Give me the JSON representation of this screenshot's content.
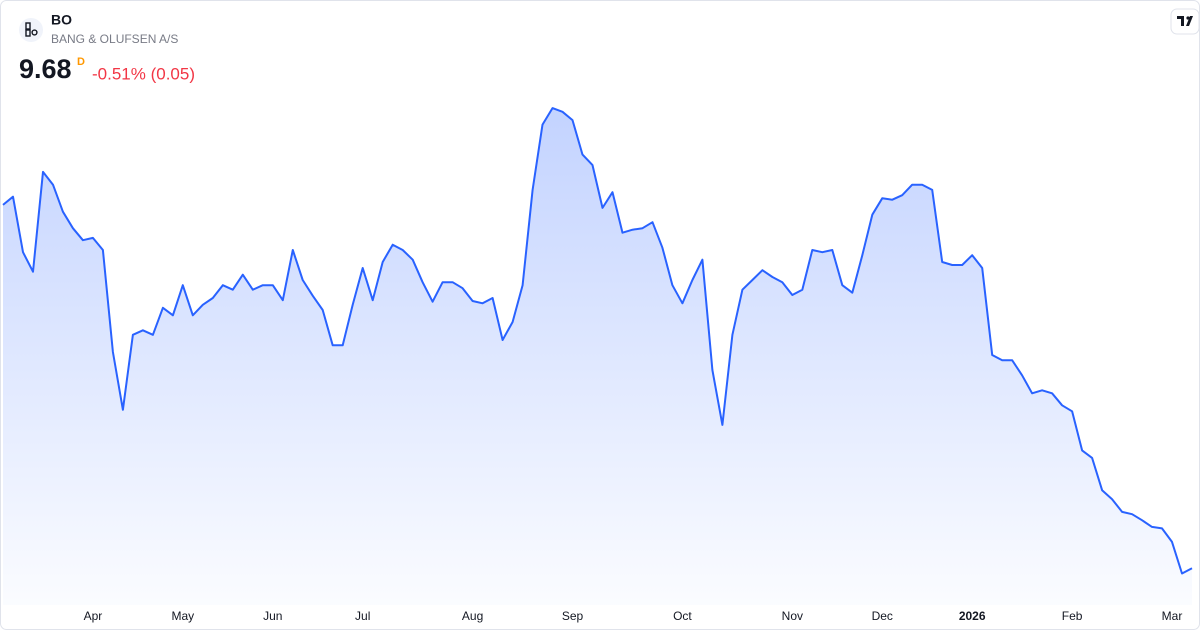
{
  "chart_data": {
    "type": "line",
    "symbol": "BO",
    "name": "BANG & OLUFSEN A/S",
    "last_price": "9.68",
    "interval": "D",
    "change": "-0.51% (0.05)",
    "color": "#2962ff",
    "ylim": [
      9.19,
      17.25
    ],
    "categories": [
      null,
      null,
      null,
      null,
      null,
      null,
      null,
      null,
      null,
      "Apr",
      null,
      null,
      null,
      null,
      null,
      null,
      null,
      null,
      "May",
      null,
      null,
      null,
      null,
      null,
      null,
      null,
      null,
      "Jun",
      null,
      null,
      null,
      null,
      null,
      null,
      null,
      null,
      "Jul",
      null,
      null,
      null,
      null,
      null,
      null,
      null,
      null,
      null,
      null,
      "Aug",
      null,
      null,
      null,
      null,
      null,
      null,
      null,
      null,
      null,
      "Sep",
      null,
      null,
      null,
      null,
      null,
      null,
      null,
      null,
      null,
      null,
      "Oct",
      null,
      null,
      null,
      null,
      null,
      null,
      null,
      null,
      null,
      null,
      "Nov",
      null,
      null,
      null,
      null,
      null,
      null,
      null,
      null,
      "Dec",
      null,
      null,
      null,
      null,
      null,
      null,
      null,
      null,
      "2026",
      null,
      null,
      null,
      null,
      null,
      null,
      null,
      null,
      null,
      "Feb",
      null,
      null,
      null,
      null,
      null,
      null,
      null,
      null,
      null,
      "Mar",
      null,
      null
    ],
    "values": [
      14.52,
      14.63,
      13.89,
      13.63,
      14.96,
      14.79,
      14.43,
      14.21,
      14.05,
      14.08,
      13.92,
      12.56,
      11.79,
      12.79,
      12.85,
      12.79,
      13.15,
      13.05,
      13.45,
      13.05,
      13.19,
      13.28,
      13.45,
      13.39,
      13.59,
      13.39,
      13.45,
      13.45,
      13.25,
      13.92,
      13.52,
      13.31,
      13.12,
      12.65,
      12.65,
      13.19,
      13.68,
      13.25,
      13.76,
      13.99,
      13.92,
      13.79,
      13.49,
      13.23,
      13.49,
      13.49,
      13.41,
      13.24,
      13.21,
      13.28,
      12.72,
      12.96,
      13.45,
      14.72,
      15.59,
      15.81,
      15.76,
      15.65,
      15.19,
      15.05,
      14.48,
      14.69,
      14.15,
      14.19,
      14.21,
      14.29,
      13.95,
      13.45,
      13.21,
      13.52,
      13.79,
      12.32,
      11.59,
      12.79,
      13.39,
      13.52,
      13.65,
      13.56,
      13.49,
      13.32,
      13.39,
      13.92,
      13.89,
      13.92,
      13.45,
      13.35,
      13.85,
      14.39,
      14.61,
      14.59,
      14.65,
      14.79,
      14.79,
      14.72,
      13.76,
      13.72,
      13.72,
      13.85,
      13.68,
      12.52,
      12.45,
      12.45,
      12.25,
      12.01,
      12.05,
      12.01,
      11.85,
      11.77,
      11.25,
      11.15,
      10.72,
      10.6,
      10.43,
      10.4,
      10.32,
      10.23,
      10.21,
      10.03,
      9.61,
      9.68
    ]
  }
}
